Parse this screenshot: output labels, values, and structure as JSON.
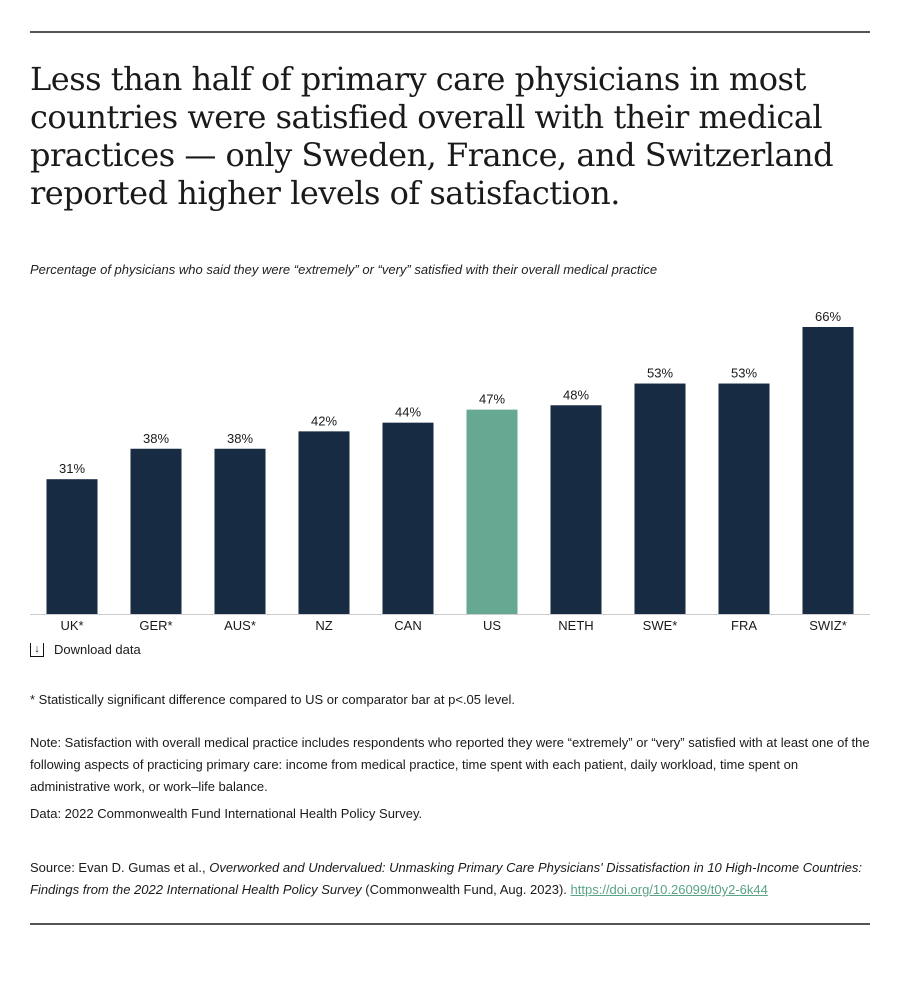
{
  "title": "Less than half of primary care physicians in most countries were satisfied overall with their medical practices — only Sweden, France, and Switzerland reported higher levels of satisfaction.",
  "subtitle": "Percentage of physicians who said they were “extremely” or “very” satisfied with their overall medical practice",
  "chart_data": {
    "type": "bar",
    "categories": [
      "UK*",
      "GER*",
      "AUS*",
      "NZ",
      "CAN",
      "US",
      "NETH",
      "SWE*",
      "FRA",
      "SWIZ*"
    ],
    "values": [
      31,
      38,
      38,
      42,
      44,
      47,
      48,
      53,
      53,
      66
    ],
    "data_labels": [
      "31%",
      "38%",
      "38%",
      "42%",
      "44%",
      "47%",
      "48%",
      "53%",
      "53%",
      "66%"
    ],
    "ylim": [
      0,
      70
    ],
    "grid": false,
    "colors": {
      "default": "#172b42",
      "highlight": "#66a891"
    },
    "highlight_category": "US"
  },
  "download_label": "Download data",
  "download_icon": "download-icon",
  "footnote": "* Statistically significant difference compared to US or comparator bar at p<.05 level.",
  "note": "Note: Satisfaction with overall medical practice includes respondents who reported they were “extremely” or “very” satisfied with at least one of the following aspects of practicing primary care: income from medical practice, time spent with each patient, daily workload, time spent on administrative work, or work–life balance.",
  "data_source": "Data: 2022 Commonwealth Fund International Health Policy Survey.",
  "source": {
    "prefix": "Source: Evan D. Gumas et al., ",
    "title": "Overworked and Undervalued: Unmasking Primary Care Physicians' Dissatisfaction in 10 High-Income Countries: Findings from the 2022 International Health Policy Survey",
    "suffix": " (Commonwealth Fund, Aug. 2023). ",
    "link": "https://doi.org/10.26099/t0y2-6k44"
  }
}
